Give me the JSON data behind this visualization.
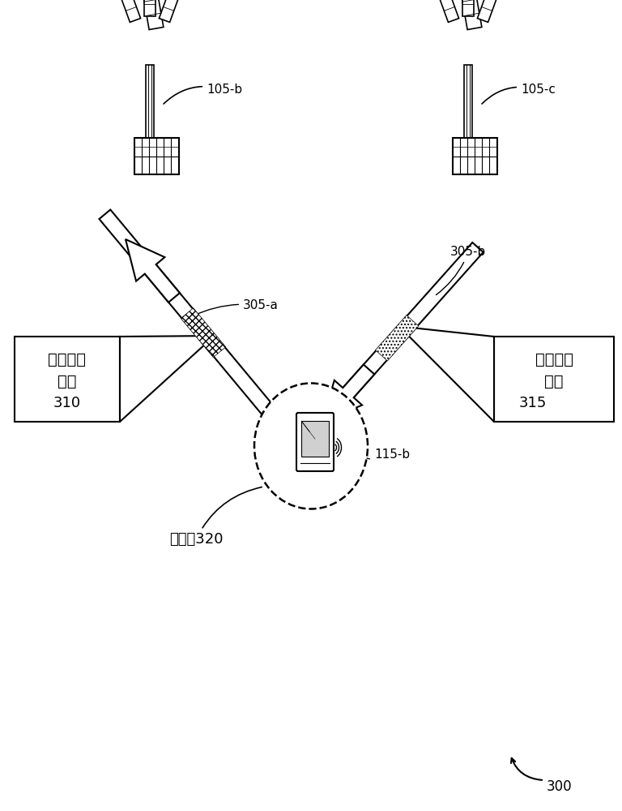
{
  "bg_color": "#ffffff",
  "label_105b": "105-b",
  "label_105c": "105-c",
  "label_305a": "305-a",
  "label_305b": "305-b",
  "label_310": "310",
  "label_315": "315",
  "label_115b": "115-b",
  "label_320": "320",
  "label_300": "300",
  "text_uplink_line1": "上行链路",
  "text_uplink_line2": "数据",
  "text_downlink_line1": "下行链路",
  "text_downlink_line2": "数据",
  "text_selfinterference": "自干扚",
  "line_color": "#000000",
  "text_color": "#000000",
  "fig_width": 7.68,
  "fig_height": 10.0
}
